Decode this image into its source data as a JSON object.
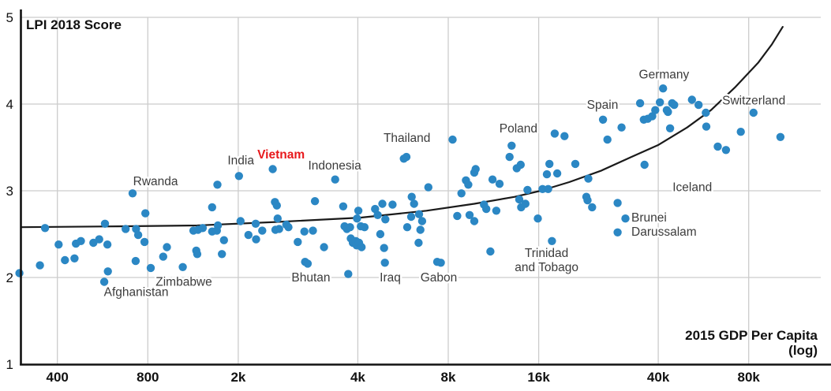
{
  "title": "LPI 2018 Score",
  "x_axis_title_line1": "2015 GDP Per Capita",
  "x_axis_title_line2": "(log)",
  "colors": {
    "dot": "#2b87c4",
    "curve": "#1a1a1a",
    "grid": "#cccccc",
    "axis": "#111111",
    "tick_text": "#111111",
    "label_text": "#3c3c3c",
    "highlight": "#e8191c",
    "background": "#ffffff"
  },
  "chart_data": {
    "type": "scatter",
    "title": "LPI 2018 Score",
    "xlabel": "2015 GDP Per Capita (log)",
    "ylabel": "LPI 2018 Score",
    "x_scale": "log",
    "ylim": [
      1,
      5
    ],
    "grid": true,
    "y_ticks": [
      1,
      2,
      3,
      4,
      5
    ],
    "x_ticks": [
      {
        "value": 400,
        "label": "400"
      },
      {
        "value": 800,
        "label": "800"
      },
      {
        "value": 1600,
        "label": "2k"
      },
      {
        "value": 4000,
        "label": "4k"
      },
      {
        "value": 8000,
        "label": "8k"
      },
      {
        "value": 16000,
        "label": "16k"
      },
      {
        "value": 40000,
        "label": "40k"
      },
      {
        "value": 80000,
        "label": "80k"
      }
    ],
    "points": [
      [
        299,
        2.05
      ],
      [
        350,
        2.14
      ],
      [
        364,
        2.57
      ],
      [
        404,
        2.38
      ],
      [
        424,
        2.2
      ],
      [
        456,
        2.22
      ],
      [
        461,
        2.39
      ],
      [
        479,
        2.42
      ],
      [
        527,
        2.4
      ],
      [
        551,
        2.44
      ],
      [
        576,
        2.62
      ],
      [
        587,
        2.38
      ],
      [
        589,
        2.07
      ],
      [
        573,
        1.95
      ],
      [
        712,
        2.97
      ],
      [
        675,
        2.56
      ],
      [
        731,
        2.56
      ],
      [
        743,
        2.49
      ],
      [
        785,
        2.74
      ],
      [
        780,
        2.41
      ],
      [
        729,
        2.19
      ],
      [
        818,
        2.11
      ],
      [
        900,
        2.24
      ],
      [
        926,
        2.35
      ],
      [
        1046,
        2.12
      ],
      [
        1135,
        2.54
      ],
      [
        1176,
        2.55
      ],
      [
        1219,
        2.57
      ],
      [
        1310,
        2.53
      ],
      [
        1358,
        2.54
      ],
      [
        1369,
        2.6
      ],
      [
        1434,
        2.43
      ],
      [
        1412,
        2.27
      ],
      [
        1160,
        2.31
      ],
      [
        1168,
        2.27
      ],
      [
        1310,
        2.81
      ],
      [
        1364,
        3.07
      ],
      [
        1609,
        3.17
      ],
      [
        2084,
        3.25
      ],
      [
        3363,
        3.13
      ],
      [
        1628,
        2.65
      ],
      [
        1829,
        2.62
      ],
      [
        1730,
        2.49
      ],
      [
        1834,
        2.44
      ],
      [
        1923,
        2.54
      ],
      [
        2151,
        2.83
      ],
      [
        2119,
        2.87
      ],
      [
        2163,
        2.68
      ],
      [
        2189,
        2.56
      ],
      [
        2127,
        2.55
      ],
      [
        2312,
        2.61
      ],
      [
        2350,
        2.58
      ],
      [
        2524,
        2.41
      ],
      [
        2656,
        2.53
      ],
      [
        2836,
        2.54
      ],
      [
        2671,
        2.18
      ],
      [
        2724,
        2.16
      ],
      [
        2880,
        2.88
      ],
      [
        3087,
        2.35
      ],
      [
        3577,
        2.82
      ],
      [
        3614,
        2.59
      ],
      [
        3679,
        2.56
      ],
      [
        3769,
        2.58
      ],
      [
        3717,
        2.04
      ],
      [
        3791,
        2.45
      ],
      [
        3851,
        2.4
      ],
      [
        3941,
        2.42
      ],
      [
        3964,
        2.37
      ],
      [
        4040,
        2.4
      ],
      [
        4117,
        2.35
      ],
      [
        4016,
        2.77
      ],
      [
        3977,
        2.68
      ],
      [
        4093,
        2.59
      ],
      [
        4212,
        2.58
      ],
      [
        4566,
        2.79
      ],
      [
        4658,
        2.72
      ],
      [
        4828,
        2.85
      ],
      [
        4940,
        2.67
      ],
      [
        4753,
        2.5
      ],
      [
        4892,
        2.34
      ],
      [
        4921,
        2.17
      ],
      [
        5220,
        2.84
      ],
      [
        5692,
        3.37
      ],
      [
        5806,
        3.39
      ],
      [
        5841,
        2.58
      ],
      [
        6020,
        2.7
      ],
      [
        6394,
        2.73
      ],
      [
        6460,
        2.55
      ],
      [
        6371,
        2.4
      ],
      [
        6045,
        2.93
      ],
      [
        6156,
        2.85
      ],
      [
        6550,
        2.65
      ],
      [
        6870,
        3.04
      ],
      [
        7350,
        2.18
      ],
      [
        7560,
        2.17
      ],
      [
        8270,
        3.59
      ],
      [
        8570,
        2.71
      ],
      [
        8850,
        2.97
      ],
      [
        9160,
        3.12
      ],
      [
        9330,
        3.07
      ],
      [
        9420,
        2.72
      ],
      [
        9770,
        2.65
      ],
      [
        9770,
        3.21
      ],
      [
        9870,
        3.25
      ],
      [
        10520,
        2.84
      ],
      [
        10710,
        2.79
      ],
      [
        11050,
        2.3
      ],
      [
        11230,
        3.13
      ],
      [
        11560,
        2.77
      ],
      [
        11850,
        3.08
      ],
      [
        12800,
        3.39
      ],
      [
        13000,
        3.52
      ],
      [
        13520,
        3.26
      ],
      [
        13940,
        3.3
      ],
      [
        13790,
        2.9
      ],
      [
        13990,
        2.81
      ],
      [
        14450,
        2.85
      ],
      [
        14680,
        3.01
      ],
      [
        15890,
        2.68
      ],
      [
        16480,
        3.02
      ],
      [
        17200,
        3.02
      ],
      [
        17040,
        3.19
      ],
      [
        17370,
        3.31
      ],
      [
        17710,
        2.42
      ],
      [
        18090,
        3.66
      ],
      [
        18440,
        3.2
      ],
      [
        19500,
        3.63
      ],
      [
        21180,
        3.31
      ],
      [
        23060,
        2.93
      ],
      [
        23270,
        2.89
      ],
      [
        23400,
        3.14
      ],
      [
        24100,
        2.81
      ],
      [
        26200,
        3.82
      ],
      [
        27100,
        3.59
      ],
      [
        29300,
        2.86
      ],
      [
        30200,
        3.73
      ],
      [
        31100,
        2.68
      ],
      [
        29300,
        2.52
      ],
      [
        34800,
        4.01
      ],
      [
        35800,
        3.82
      ],
      [
        36900,
        3.83
      ],
      [
        36000,
        3.3
      ],
      [
        38200,
        3.86
      ],
      [
        39100,
        3.93
      ],
      [
        40500,
        4.02
      ],
      [
        41500,
        4.18
      ],
      [
        42700,
        3.93
      ],
      [
        43100,
        3.91
      ],
      [
        44500,
        4.01
      ],
      [
        45200,
        3.99
      ],
      [
        43800,
        3.72
      ],
      [
        51800,
        4.05
      ],
      [
        54500,
        3.99
      ],
      [
        57600,
        3.9
      ],
      [
        57800,
        3.74
      ],
      [
        63100,
        3.51
      ],
      [
        67200,
        3.47
      ],
      [
        75300,
        3.68
      ],
      [
        83000,
        3.9
      ],
      [
        102000,
        3.62
      ]
    ],
    "trend_curve": [
      [
        303,
        2.58
      ],
      [
        639,
        2.59
      ],
      [
        1169,
        2.6
      ],
      [
        2133,
        2.64
      ],
      [
        4072,
        2.69
      ],
      [
        6770,
        2.77
      ],
      [
        9770,
        2.85
      ],
      [
        13310,
        2.93
      ],
      [
        16230,
        3.0
      ],
      [
        20220,
        3.1
      ],
      [
        25750,
        3.23
      ],
      [
        32550,
        3.39
      ],
      [
        40100,
        3.53
      ],
      [
        49900,
        3.73
      ],
      [
        59900,
        3.93
      ],
      [
        71900,
        4.19
      ],
      [
        86200,
        4.48
      ],
      [
        95600,
        4.69
      ],
      [
        103800,
        4.89
      ]
    ],
    "annotations": [
      {
        "lines": [
          "Afghanistan"
        ],
        "gdp": 732,
        "lpi": 1.83,
        "anchor": "middle",
        "style": "default"
      },
      {
        "lines": [
          "Rwanda"
        ],
        "gdp": 849,
        "lpi": 3.11,
        "anchor": "middle",
        "style": "default"
      },
      {
        "lines": [
          "Zimbabwe"
        ],
        "gdp": 1055,
        "lpi": 1.95,
        "anchor": "middle",
        "style": "default"
      },
      {
        "lines": [
          "India"
        ],
        "gdp": 1632,
        "lpi": 3.35,
        "anchor": "middle",
        "style": "default"
      },
      {
        "lines": [
          "Vietnam"
        ],
        "gdp": 2220,
        "lpi": 3.42,
        "anchor": "middle",
        "style": "highlight"
      },
      {
        "lines": [
          "Indonesia"
        ],
        "gdp": 3350,
        "lpi": 3.29,
        "anchor": "middle",
        "style": "default"
      },
      {
        "lines": [
          "Bhutan"
        ],
        "gdp": 2792,
        "lpi": 2.0,
        "anchor": "middle",
        "style": "default"
      },
      {
        "lines": [
          "Iraq"
        ],
        "gdp": 5130,
        "lpi": 2.0,
        "anchor": "middle",
        "style": "default"
      },
      {
        "lines": [
          "Gabon"
        ],
        "gdp": 7440,
        "lpi": 2.0,
        "anchor": "middle",
        "style": "default"
      },
      {
        "lines": [
          "Thailand"
        ],
        "gdp": 5830,
        "lpi": 3.61,
        "anchor": "middle",
        "style": "default"
      },
      {
        "lines": [
          "Poland"
        ],
        "gdp": 13700,
        "lpi": 3.72,
        "anchor": "middle",
        "style": "default"
      },
      {
        "lines": [
          "Trinidad",
          "and Tobago"
        ],
        "gdp": 17000,
        "lpi": 2.28,
        "anchor": "middle",
        "style": "default"
      },
      {
        "lines": [
          "Spain"
        ],
        "gdp": 26100,
        "lpi": 3.99,
        "anchor": "middle",
        "style": "default"
      },
      {
        "lines": [
          "Germany"
        ],
        "gdp": 41800,
        "lpi": 4.34,
        "anchor": "middle",
        "style": "default"
      },
      {
        "lines": [
          "Switzerland"
        ],
        "gdp": 83200,
        "lpi": 4.04,
        "anchor": "middle",
        "style": "default"
      },
      {
        "lines": [
          "Iceland"
        ],
        "gdp": 51900,
        "lpi": 3.04,
        "anchor": "middle",
        "style": "default"
      },
      {
        "lines": [
          "Brunei",
          "Darussalam"
        ],
        "gdp": 32540,
        "lpi": 2.69,
        "anchor": "start",
        "style": "default"
      }
    ]
  }
}
